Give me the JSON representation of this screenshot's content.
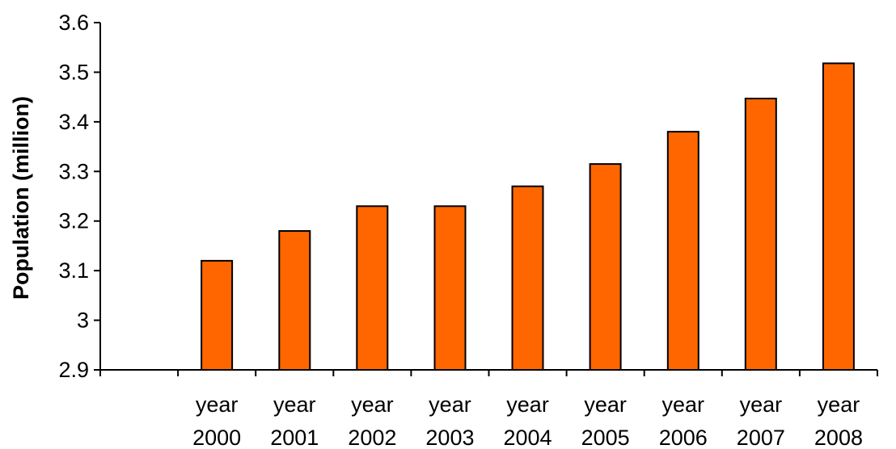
{
  "chart_data": {
    "type": "bar",
    "title": "",
    "xlabel": "",
    "ylabel": "Population (million)",
    "ylim": [
      2.9,
      3.6
    ],
    "yticks": [
      "2.9",
      "3",
      "3.1",
      "3.2",
      "3.3",
      "3.4",
      "3.5",
      "3.6"
    ],
    "ytick_values": [
      2.9,
      3.0,
      3.1,
      3.2,
      3.3,
      3.4,
      3.5,
      3.6
    ],
    "grid": false,
    "legend": "none",
    "categories": [
      "",
      "year 2000",
      "year 2001",
      "year 2002",
      "year 2003",
      "year 2004",
      "year 2005",
      "year 2006",
      "year 2007",
      "year 2008"
    ],
    "category_lines": [
      [
        "",
        ""
      ],
      [
        "year",
        "2000"
      ],
      [
        "year",
        "2001"
      ],
      [
        "year",
        "2002"
      ],
      [
        "year",
        "2003"
      ],
      [
        "year",
        "2004"
      ],
      [
        "year",
        "2005"
      ],
      [
        "year",
        "2006"
      ],
      [
        "year",
        "2007"
      ],
      [
        "year",
        "2008"
      ]
    ],
    "values": [
      null,
      3.12,
      3.18,
      3.23,
      3.23,
      3.27,
      3.315,
      3.38,
      3.447,
      3.518
    ],
    "bar_color": "#FF6600",
    "bar_edge_color": "#000000"
  }
}
